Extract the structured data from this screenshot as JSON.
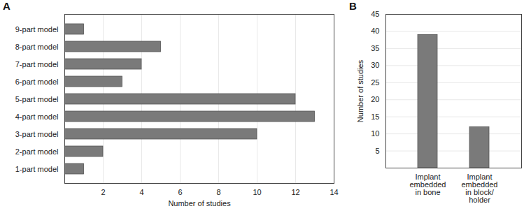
{
  "chart_data": [
    {
      "type": "bar",
      "title": "A",
      "orientation": "horizontal",
      "categories": [
        "9-part model",
        "8-part model",
        "7-part model",
        "6-part model",
        "5-part model",
        "4-part model",
        "3-part model",
        "2-part model",
        "1-part model"
      ],
      "values": [
        1,
        5,
        4,
        3,
        12,
        13,
        10,
        2,
        1
      ],
      "color": "#7a7a7a",
      "xlabel": "Number of studies",
      "xlim": [
        0,
        14
      ],
      "xticks": [
        2,
        4,
        6,
        8,
        10,
        12,
        14
      ],
      "grid": true
    },
    {
      "type": "bar",
      "title": "B",
      "categories": [
        "Implant embedded in bone",
        "Implant embedded in block/ holder"
      ],
      "values": [
        39,
        12
      ],
      "color": "#7a7a7a",
      "ylabel": "Number of studies",
      "ylim": [
        0,
        45
      ],
      "yticks": [
        5,
        10,
        15,
        20,
        25,
        30,
        35,
        40,
        45
      ],
      "grid": true
    }
  ]
}
